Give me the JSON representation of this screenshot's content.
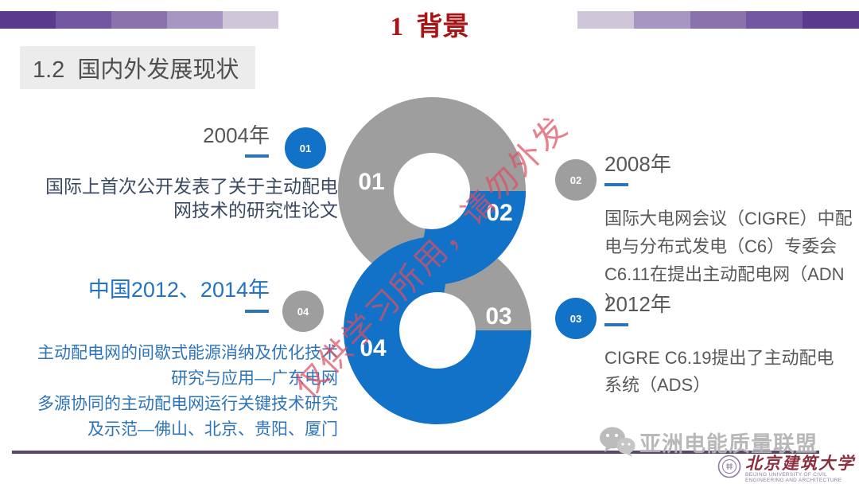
{
  "header": {
    "title": "1  背景",
    "bar_colors_left": [
      "#5a3a8c",
      "#7257a2",
      "#8a72ad",
      "#a795c2",
      "#cfc6da"
    ],
    "bar_colors_right": [
      "#cfc6da",
      "#a795c2",
      "#8a72ad",
      "#7257a2",
      "#5a3a8c"
    ]
  },
  "section": {
    "title": "1.2  国内外发展现状"
  },
  "timeline": {
    "items": [
      {
        "id": "01",
        "year": "2004年",
        "desc": "国际上首次公开发表了关于主动配电\n网技术的研究性论文"
      },
      {
        "id": "02",
        "year": "2008年",
        "desc": "国际大电网会议（CIGRE）中配\n电与分布式发电（C6）专委会\nC6.11在提出主动配电网（ADN\n）"
      },
      {
        "id": "03",
        "year": "2012年",
        "desc": "CIGRE C6.19提出了主动配电\n系统（ADS）"
      },
      {
        "id": "04",
        "year": "中国2012、2014年",
        "desc": "主动配电网的间歇式能源消纳及优化技术\n研究与应用—广东电网\n多源协同的主动配电网运行关键技术研究\n及示范—佛山、北京、贵阳、厦门"
      }
    ],
    "figure_numbers": [
      "01",
      "02",
      "03",
      "04"
    ]
  },
  "watermark": {
    "diagonal_text": "仅供学习所用，请勿外发",
    "footer_text": "亚洲电能质量联盟"
  },
  "footer": {
    "university": "北京建筑大学",
    "university_en1": "BEIJING UNIVERSITY OF CIVIL",
    "university_en2": "ENGINEERING AND ARCHITECTURE"
  },
  "colors": {
    "accent_blue": "#1272c8",
    "ring_gray": "#9e9e9e",
    "heading_red": "#a81414",
    "footer_purple": "#584769"
  }
}
